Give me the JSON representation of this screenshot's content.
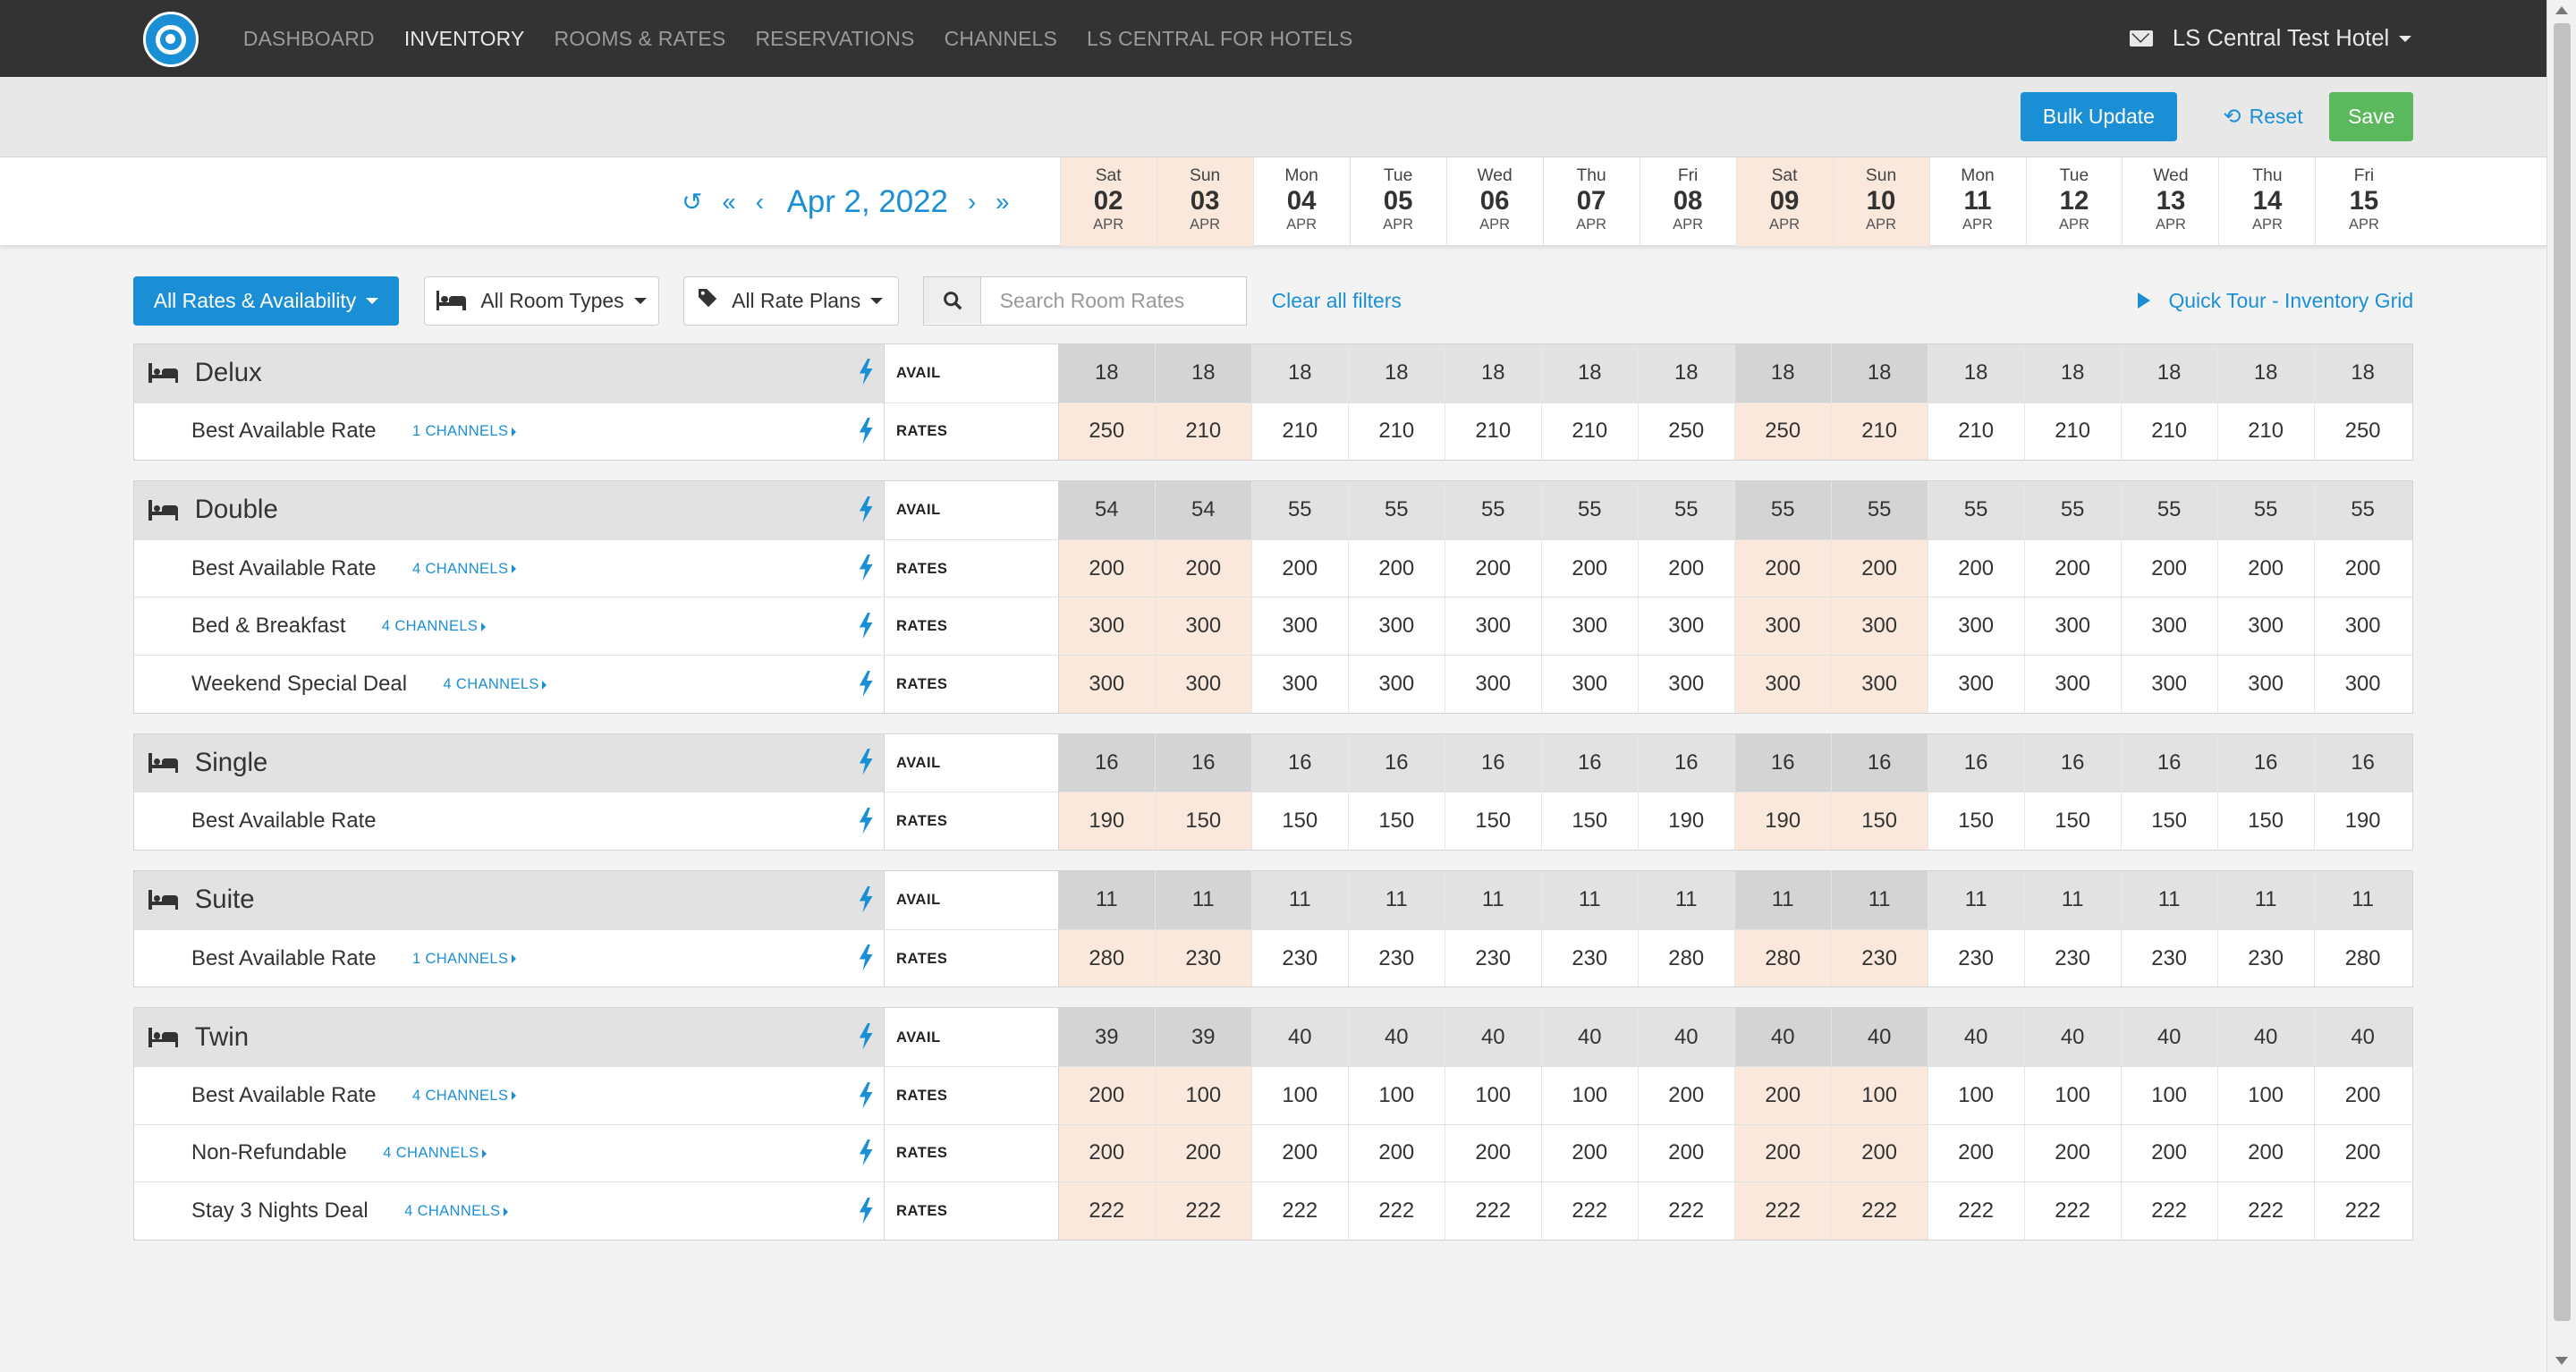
{
  "nav": {
    "items": [
      {
        "label": "DASHBOARD",
        "active": false
      },
      {
        "label": "INVENTORY",
        "active": true
      },
      {
        "label": "ROOMS & RATES",
        "active": false
      },
      {
        "label": "RESERVATIONS",
        "active": false
      },
      {
        "label": "CHANNELS",
        "active": false
      },
      {
        "label": "LS CENTRAL FOR HOTELS",
        "active": false
      }
    ],
    "hotel_name": "LS Central Test Hotel"
  },
  "toolbar": {
    "bulk_update_label": "Bulk Update",
    "reset_label": "Reset",
    "save_label": "Save"
  },
  "date_nav": {
    "current_date": "Apr 2, 2022"
  },
  "days": [
    {
      "dow": "Sat",
      "day": "02",
      "month": "APR",
      "weekend": true
    },
    {
      "dow": "Sun",
      "day": "03",
      "month": "APR",
      "weekend": true
    },
    {
      "dow": "Mon",
      "day": "04",
      "month": "APR",
      "weekend": false
    },
    {
      "dow": "Tue",
      "day": "05",
      "month": "APR",
      "weekend": false
    },
    {
      "dow": "Wed",
      "day": "06",
      "month": "APR",
      "weekend": false
    },
    {
      "dow": "Thu",
      "day": "07",
      "month": "APR",
      "weekend": false
    },
    {
      "dow": "Fri",
      "day": "08",
      "month": "APR",
      "weekend": false
    },
    {
      "dow": "Sat",
      "day": "09",
      "month": "APR",
      "weekend": true
    },
    {
      "dow": "Sun",
      "day": "10",
      "month": "APR",
      "weekend": true
    },
    {
      "dow": "Mon",
      "day": "11",
      "month": "APR",
      "weekend": false
    },
    {
      "dow": "Tue",
      "day": "12",
      "month": "APR",
      "weekend": false
    },
    {
      "dow": "Wed",
      "day": "13",
      "month": "APR",
      "weekend": false
    },
    {
      "dow": "Thu",
      "day": "14",
      "month": "APR",
      "weekend": false
    },
    {
      "dow": "Fri",
      "day": "15",
      "month": "APR",
      "weekend": false
    }
  ],
  "filters": {
    "all_rates_label": "All Rates & Availability",
    "room_types_label": "All Room Types",
    "rate_plans_label": "All Rate Plans",
    "search_placeholder": "Search Room Rates",
    "clear_label": "Clear all filters",
    "quick_tour_label": "Quick Tour - Inventory Grid"
  },
  "row_types": {
    "avail": "AVAIL",
    "rates": "RATES"
  },
  "rooms": [
    {
      "name": "Delux",
      "avail": [
        18,
        18,
        18,
        18,
        18,
        18,
        18,
        18,
        18,
        18,
        18,
        18,
        18,
        18
      ],
      "rates": [
        {
          "name": "Best Available Rate",
          "channels": "1 CHANNELS",
          "values": [
            250,
            210,
            210,
            210,
            210,
            210,
            250,
            250,
            210,
            210,
            210,
            210,
            210,
            250
          ]
        }
      ]
    },
    {
      "name": "Double",
      "avail": [
        54,
        54,
        55,
        55,
        55,
        55,
        55,
        55,
        55,
        55,
        55,
        55,
        55,
        55
      ],
      "rates": [
        {
          "name": "Best Available Rate",
          "channels": "4 CHANNELS",
          "values": [
            200,
            200,
            200,
            200,
            200,
            200,
            200,
            200,
            200,
            200,
            200,
            200,
            200,
            200
          ]
        },
        {
          "name": "Bed & Breakfast",
          "channels": "4 CHANNELS",
          "values": [
            300,
            300,
            300,
            300,
            300,
            300,
            300,
            300,
            300,
            300,
            300,
            300,
            300,
            300
          ]
        },
        {
          "name": "Weekend Special Deal",
          "channels": "4 CHANNELS",
          "values": [
            300,
            300,
            300,
            300,
            300,
            300,
            300,
            300,
            300,
            300,
            300,
            300,
            300,
            300
          ]
        }
      ]
    },
    {
      "name": "Single",
      "avail": [
        16,
        16,
        16,
        16,
        16,
        16,
        16,
        16,
        16,
        16,
        16,
        16,
        16,
        16
      ],
      "rates": [
        {
          "name": "Best Available Rate",
          "channels": "",
          "values": [
            190,
            150,
            150,
            150,
            150,
            150,
            190,
            190,
            150,
            150,
            150,
            150,
            150,
            190
          ]
        }
      ]
    },
    {
      "name": "Suite",
      "avail": [
        11,
        11,
        11,
        11,
        11,
        11,
        11,
        11,
        11,
        11,
        11,
        11,
        11,
        11
      ],
      "rates": [
        {
          "name": "Best Available Rate",
          "channels": "1 CHANNELS",
          "values": [
            280,
            230,
            230,
            230,
            230,
            230,
            280,
            280,
            230,
            230,
            230,
            230,
            230,
            280
          ]
        }
      ]
    },
    {
      "name": "Twin",
      "avail": [
        39,
        39,
        40,
        40,
        40,
        40,
        40,
        40,
        40,
        40,
        40,
        40,
        40,
        40
      ],
      "rates": [
        {
          "name": "Best Available Rate",
          "channels": "4 CHANNELS",
          "values": [
            200,
            100,
            100,
            100,
            100,
            100,
            200,
            200,
            100,
            100,
            100,
            100,
            100,
            200
          ]
        },
        {
          "name": "Non-Refundable",
          "channels": "4 CHANNELS",
          "values": [
            200,
            200,
            200,
            200,
            200,
            200,
            200,
            200,
            200,
            200,
            200,
            200,
            200,
            200
          ]
        },
        {
          "name": "Stay 3 Nights Deal",
          "channels": "4 CHANNELS",
          "values": [
            222,
            222,
            222,
            222,
            222,
            222,
            222,
            222,
            222,
            222,
            222,
            222,
            222,
            222
          ]
        }
      ]
    }
  ],
  "colors": {
    "accent": "#1b8fd6",
    "save": "#5cb85c",
    "weekend": "#fbe8dc",
    "nav_bg": "#333333"
  }
}
